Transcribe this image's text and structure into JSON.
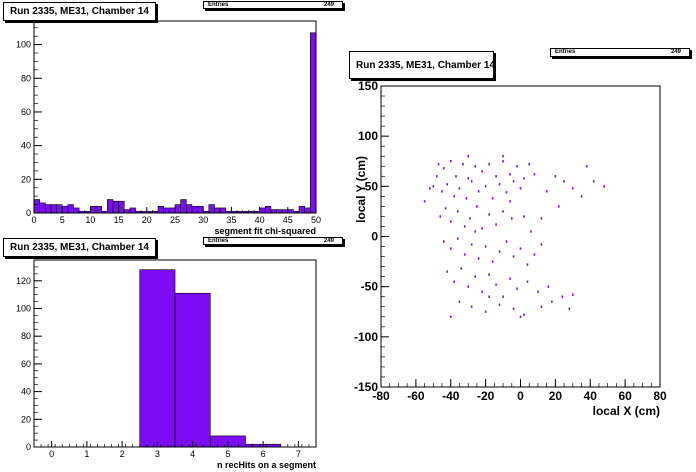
{
  "panels": {
    "chi2": {
      "title": "Run 2335, ME31, Chamber 14",
      "stats_label": "Entries",
      "stats_value": "249"
    },
    "nhits": {
      "title": "Run 2335, ME31, Chamber 14",
      "stats_label": "Entries",
      "stats_value": "249"
    },
    "local": {
      "title": "Run 2335, ME31, Chamber 14",
      "stats_label": "Entries",
      "stats_value": "249"
    }
  },
  "colors": {
    "fill": "#7b0cf3",
    "axis": "#000000"
  },
  "chart_data": [
    {
      "type": "bar",
      "xlabel": "segment fit chi-squared",
      "xlim": [
        0,
        50
      ],
      "ylim": [
        0,
        114
      ],
      "xticks": [
        0,
        5,
        10,
        15,
        20,
        25,
        30,
        35,
        40,
        45,
        50
      ],
      "yticks": [
        0,
        20,
        40,
        60,
        80,
        100
      ],
      "bin_width": 1,
      "values": [
        8,
        6,
        5,
        5,
        5,
        4,
        5,
        3,
        1,
        1,
        4,
        4,
        1,
        8,
        7,
        7,
        2,
        3,
        1,
        1,
        1,
        1,
        4,
        3,
        3,
        5,
        8,
        5,
        4,
        4,
        1,
        5,
        3,
        3,
        1,
        1,
        1,
        1,
        1,
        1,
        3,
        4,
        2,
        2,
        2,
        2,
        1,
        4,
        3,
        107
      ]
    },
    {
      "type": "bar",
      "xlabel": "n recHits on a segment",
      "xlim": [
        -0.5,
        7.5
      ],
      "ylim": [
        0,
        135
      ],
      "xticks": [
        0,
        1,
        2,
        3,
        4,
        5,
        6,
        7
      ],
      "yticks": [
        0,
        20,
        40,
        60,
        80,
        100,
        120
      ],
      "bin_width": 1,
      "x": [
        3,
        4,
        5,
        6
      ],
      "values": [
        128,
        111,
        8,
        2
      ]
    },
    {
      "type": "scatter",
      "xlabel": "local X (cm)",
      "ylabel": "local Y (cm)",
      "xlim": [
        -80,
        80
      ],
      "ylim": [
        -150,
        150
      ],
      "xticks": [
        -80,
        -60,
        -40,
        -20,
        0,
        20,
        40,
        60,
        80
      ],
      "yticks": [
        -150,
        -100,
        -50,
        0,
        50,
        100,
        150
      ],
      "points": [
        [
          -47,
          72
        ],
        [
          -44,
          68
        ],
        [
          -40,
          75
        ],
        [
          -37,
          60
        ],
        [
          -33,
          72
        ],
        [
          -30,
          58
        ],
        [
          -26,
          70
        ],
        [
          -22,
          65
        ],
        [
          -18,
          72
        ],
        [
          -14,
          60
        ],
        [
          -10,
          75
        ],
        [
          -6,
          62
        ],
        [
          -2,
          70
        ],
        [
          2,
          58
        ],
        [
          5,
          72
        ],
        [
          -50,
          50
        ],
        [
          -45,
          45
        ],
        [
          -42,
          52
        ],
        [
          -38,
          40
        ],
        [
          -35,
          48
        ],
        [
          -31,
          38
        ],
        [
          -28,
          55
        ],
        [
          -24,
          45
        ],
        [
          -20,
          50
        ],
        [
          -16,
          38
        ],
        [
          -12,
          52
        ],
        [
          -8,
          44
        ],
        [
          -4,
          55
        ],
        [
          0,
          48
        ],
        [
          20,
          60
        ],
        [
          25,
          55
        ],
        [
          30,
          48
        ],
        [
          35,
          40
        ],
        [
          42,
          55
        ],
        [
          48,
          50
        ],
        [
          -46,
          20
        ],
        [
          -43,
          28
        ],
        [
          -40,
          15
        ],
        [
          -36,
          25
        ],
        [
          -32,
          10
        ],
        [
          -29,
          18
        ],
        [
          -25,
          30
        ],
        [
          -22,
          8
        ],
        [
          -18,
          22
        ],
        [
          -14,
          12
        ],
        [
          -10,
          25
        ],
        [
          -5,
          18
        ],
        [
          2,
          20
        ],
        [
          12,
          18
        ],
        [
          -44,
          -5
        ],
        [
          -40,
          -12
        ],
        [
          -36,
          -2
        ],
        [
          -32,
          -18
        ],
        [
          -28,
          -8
        ],
        [
          -24,
          -22
        ],
        [
          -20,
          -10
        ],
        [
          -16,
          -25
        ],
        [
          -12,
          -15
        ],
        [
          -8,
          -5
        ],
        [
          -4,
          -20
        ],
        [
          0,
          -12
        ],
        [
          4,
          -28
        ],
        [
          8,
          -18
        ],
        [
          12,
          -8
        ],
        [
          -42,
          -35
        ],
        [
          -38,
          -45
        ],
        [
          -34,
          -32
        ],
        [
          -30,
          -50
        ],
        [
          -26,
          -40
        ],
        [
          -22,
          -55
        ],
        [
          -18,
          -38
        ],
        [
          -14,
          -48
        ],
        [
          -10,
          -60
        ],
        [
          -6,
          -42
        ],
        [
          -2,
          -52
        ],
        [
          4,
          -45
        ],
        [
          10,
          -55
        ],
        [
          16,
          -50
        ],
        [
          24,
          -60
        ],
        [
          30,
          -58
        ],
        [
          -35,
          -65
        ],
        [
          -28,
          -70
        ],
        [
          -20,
          -75
        ],
        [
          -12,
          -68
        ],
        [
          -4,
          -72
        ],
        [
          2,
          -78
        ],
        [
          12,
          -70
        ],
        [
          18,
          -65
        ],
        [
          -48,
          60
        ],
        [
          -52,
          48
        ],
        [
          -55,
          35
        ],
        [
          -30,
          80
        ],
        [
          -10,
          80
        ],
        [
          8,
          62
        ],
        [
          15,
          45
        ],
        [
          38,
          70
        ],
        [
          -40,
          -80
        ],
        [
          0,
          -80
        ],
        [
          28,
          -72
        ],
        [
          -26,
          5
        ],
        [
          -6,
          35
        ],
        [
          6,
          5
        ],
        [
          -18,
          -60
        ],
        [
          22,
          30
        ]
      ]
    }
  ]
}
